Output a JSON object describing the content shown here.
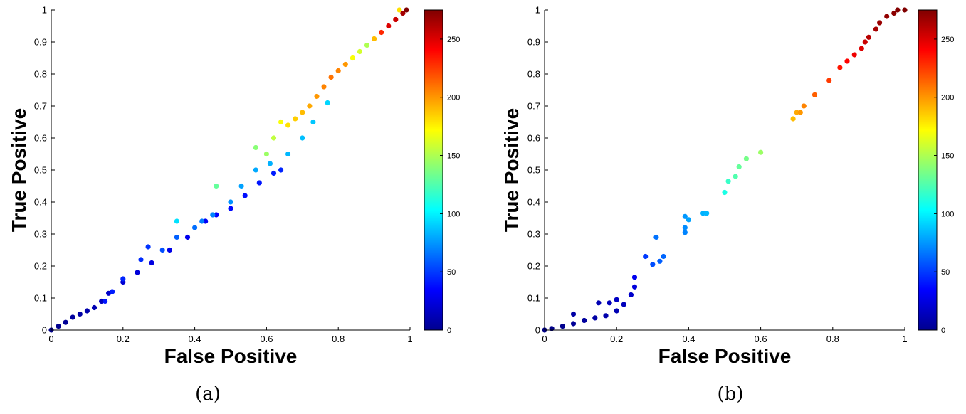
{
  "chart_data": [
    {
      "type": "scatter",
      "caption": "(a)",
      "xlabel": "False Positive",
      "ylabel": "True Positive",
      "xlim": [
        0,
        1
      ],
      "ylim": [
        0,
        1
      ],
      "xticks": [
        "0",
        "0.2",
        "0.4",
        "0.6",
        "0.8",
        "1"
      ],
      "yticks": [
        "0",
        "0.1",
        "0.2",
        "0.3",
        "0.4",
        "0.5",
        "0.6",
        "0.7",
        "0.8",
        "0.9",
        "1"
      ],
      "colorbar": {
        "colormap": "jet",
        "range": [
          0,
          275
        ],
        "ticks": [
          "0",
          "50",
          "100",
          "150",
          "200",
          "250"
        ]
      },
      "series": [
        {
          "points": [
            [
              0,
              0,
              2
            ],
            [
              0.02,
              0.012,
              4
            ],
            [
              0.04,
              0.024,
              6
            ],
            [
              0.06,
              0.04,
              8
            ],
            [
              0.08,
              0.05,
              10
            ],
            [
              0.1,
              0.06,
              12
            ],
            [
              0.12,
              0.07,
              14
            ],
            [
              0.14,
              0.09,
              17
            ],
            [
              0.16,
              0.115,
              20
            ],
            [
              0.2,
              0.15,
              22
            ],
            [
              0.24,
              0.18,
              24
            ],
            [
              0.28,
              0.21,
              26
            ],
            [
              0.33,
              0.25,
              28
            ],
            [
              0.38,
              0.29,
              30
            ],
            [
              0.43,
              0.34,
              32
            ],
            [
              0.46,
              0.36,
              34
            ],
            [
              0.5,
              0.38,
              36
            ],
            [
              0.54,
              0.42,
              38
            ],
            [
              0.58,
              0.46,
              40
            ],
            [
              0.62,
              0.49,
              42
            ],
            [
              0.64,
              0.5,
              44
            ]
          ]
        },
        {
          "points": [
            [
              0.15,
              0.09,
              40
            ],
            [
              0.17,
              0.12,
              42
            ],
            [
              0.2,
              0.16,
              44
            ],
            [
              0.25,
              0.22,
              46
            ],
            [
              0.27,
              0.26,
              48
            ],
            [
              0.31,
              0.25,
              55
            ],
            [
              0.35,
              0.29,
              60
            ],
            [
              0.4,
              0.32,
              64
            ],
            [
              0.42,
              0.34,
              68
            ],
            [
              0.45,
              0.36,
              70
            ],
            [
              0.5,
              0.4,
              74
            ],
            [
              0.53,
              0.45,
              78
            ],
            [
              0.57,
              0.5,
              80
            ],
            [
              0.61,
              0.52,
              82
            ],
            [
              0.66,
              0.55,
              84
            ],
            [
              0.7,
              0.6,
              86
            ],
            [
              0.73,
              0.65,
              88
            ],
            [
              0.77,
              0.71,
              92
            ]
          ]
        },
        {
          "points": [
            [
              0.35,
              0.34,
              95
            ],
            [
              0.46,
              0.45,
              130
            ],
            [
              0.57,
              0.57,
              140
            ],
            [
              0.6,
              0.55,
              145
            ],
            [
              0.62,
              0.6,
              155
            ],
            [
              0.64,
              0.65,
              170
            ],
            [
              0.66,
              0.64,
              180
            ],
            [
              0.68,
              0.66,
              185
            ],
            [
              0.7,
              0.68,
              190
            ],
            [
              0.72,
              0.7,
              195
            ],
            [
              0.74,
              0.73,
              200
            ],
            [
              0.76,
              0.76,
              205
            ],
            [
              0.78,
              0.79,
              210
            ],
            [
              0.8,
              0.81,
              205
            ],
            [
              0.82,
              0.83,
              200
            ],
            [
              0.84,
              0.85,
              170
            ],
            [
              0.86,
              0.87,
              160
            ],
            [
              0.88,
              0.89,
              150
            ],
            [
              0.9,
              0.91,
              190
            ],
            [
              0.92,
              0.93,
              230
            ],
            [
              0.94,
              0.95,
              250
            ],
            [
              0.96,
              0.97,
              255
            ],
            [
              0.98,
              0.99,
              265
            ],
            [
              0.99,
              1.0,
              275
            ],
            [
              0.97,
              1.0,
              180
            ]
          ]
        }
      ]
    },
    {
      "type": "scatter",
      "caption": "(b)",
      "xlabel": "False Positive",
      "ylabel": "True Positive",
      "xlim": [
        0,
        1
      ],
      "ylim": [
        0,
        1
      ],
      "xticks": [
        "0",
        "0.2",
        "0.4",
        "0.6",
        "0.8",
        "1"
      ],
      "yticks": [
        "0",
        "0.1",
        "0.2",
        "0.3",
        "0.4",
        "0.5",
        "0.6",
        "0.7",
        "0.8",
        "0.9",
        "1"
      ],
      "colorbar": {
        "colormap": "jet",
        "range": [
          0,
          275
        ],
        "ticks": [
          "0",
          "50",
          "100",
          "150",
          "200",
          "250"
        ]
      },
      "series": [
        {
          "points": [
            [
              0,
              0,
              1
            ],
            [
              0.02,
              0.005,
              2
            ],
            [
              0.05,
              0.012,
              4
            ],
            [
              0.08,
              0.02,
              6
            ],
            [
              0.11,
              0.03,
              8
            ],
            [
              0.14,
              0.038,
              10
            ],
            [
              0.17,
              0.045,
              12
            ],
            [
              0.2,
              0.06,
              14
            ],
            [
              0.22,
              0.08,
              16
            ],
            [
              0.24,
              0.11,
              20
            ],
            [
              0.25,
              0.135,
              25
            ],
            [
              0.25,
              0.165,
              30
            ],
            [
              0.08,
              0.05,
              10
            ],
            [
              0.15,
              0.085,
              14
            ],
            [
              0.18,
              0.085,
              16
            ],
            [
              0.2,
              0.095,
              18
            ]
          ]
        },
        {
          "points": [
            [
              0.28,
              0.23,
              50
            ],
            [
              0.3,
              0.205,
              55
            ],
            [
              0.31,
              0.29,
              65
            ],
            [
              0.32,
              0.215,
              60
            ],
            [
              0.33,
              0.23,
              62
            ],
            [
              0.39,
              0.305,
              70
            ],
            [
              0.39,
              0.32,
              72
            ],
            [
              0.39,
              0.355,
              75
            ],
            [
              0.4,
              0.345,
              78
            ],
            [
              0.44,
              0.365,
              82
            ],
            [
              0.45,
              0.365,
              84
            ],
            [
              0.5,
              0.43,
              110
            ],
            [
              0.51,
              0.465,
              118
            ],
            [
              0.53,
              0.48,
              125
            ],
            [
              0.54,
              0.51,
              130
            ],
            [
              0.56,
              0.535,
              135
            ],
            [
              0.6,
              0.555,
              145
            ]
          ]
        },
        {
          "points": [
            [
              0.69,
              0.66,
              190
            ],
            [
              0.7,
              0.68,
              195
            ],
            [
              0.71,
              0.68,
              200
            ],
            [
              0.72,
              0.7,
              205
            ],
            [
              0.75,
              0.735,
              215
            ],
            [
              0.79,
              0.78,
              225
            ],
            [
              0.82,
              0.82,
              235
            ],
            [
              0.84,
              0.84,
              240
            ],
            [
              0.86,
              0.86,
              245
            ],
            [
              0.88,
              0.88,
              250
            ],
            [
              0.89,
              0.9,
              255
            ],
            [
              0.9,
              0.915,
              260
            ],
            [
              0.92,
              0.94,
              265
            ],
            [
              0.93,
              0.96,
              268
            ],
            [
              0.95,
              0.98,
              270
            ],
            [
              0.97,
              0.99,
              272
            ],
            [
              0.98,
              1.0,
              274
            ],
            [
              1.0,
              1.0,
              275
            ]
          ]
        }
      ]
    }
  ]
}
